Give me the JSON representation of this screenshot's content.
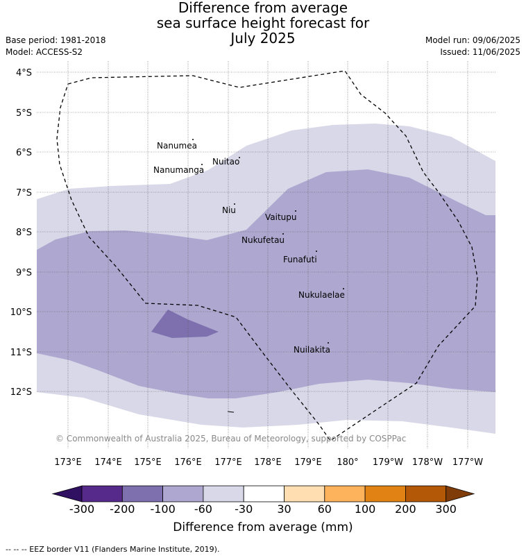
{
  "title": {
    "line1": "Difference from average",
    "line2": "sea surface height forecast for",
    "line3": "July 2025"
  },
  "meta_left": {
    "base_period": "Base period: 1981-2018",
    "model": "Model: ACCESS-S2"
  },
  "meta_right": {
    "model_run": "Model run: 09/06/2025",
    "issued": "Issued: 11/06/2025"
  },
  "map": {
    "lat_labels": [
      "4°S",
      "5°S",
      "6°S",
      "7°S",
      "8°S",
      "9°S",
      "10°S",
      "11°S",
      "12°S"
    ],
    "lon_labels": [
      "173°E",
      "174°E",
      "175°E",
      "176°E",
      "177°E",
      "178°E",
      "179°E",
      "180°",
      "179°W",
      "178°W",
      "177°W"
    ],
    "places": [
      "Nanumea",
      "Nuitao",
      "Nanumanga",
      "Niu",
      "Vaitupu",
      "Nukufetau",
      "Funafuti",
      "Nukulaelae",
      "Nuilakita"
    ],
    "copyright": "© Commonwealth of Australia 2025, Bureau of Meteorology, supported by COSPPac"
  },
  "colorbar": {
    "title": "Difference from average (mm)",
    "labels": [
      "-300",
      "-200",
      "-100",
      "-60",
      "-30",
      "30",
      "60",
      "100",
      "200",
      "300"
    ],
    "colors": [
      "#301060",
      "#562a8a",
      "#7e70ae",
      "#aea8d0",
      "#d8d8e8",
      "#ffffff",
      "#ffdfb2",
      "#fdb35c",
      "#e08214",
      "#b35806",
      "#7f3b08"
    ]
  },
  "legend_footer": "--  --  -- EEZ border V11 (Flanders Marine Institute, 2019)."
}
